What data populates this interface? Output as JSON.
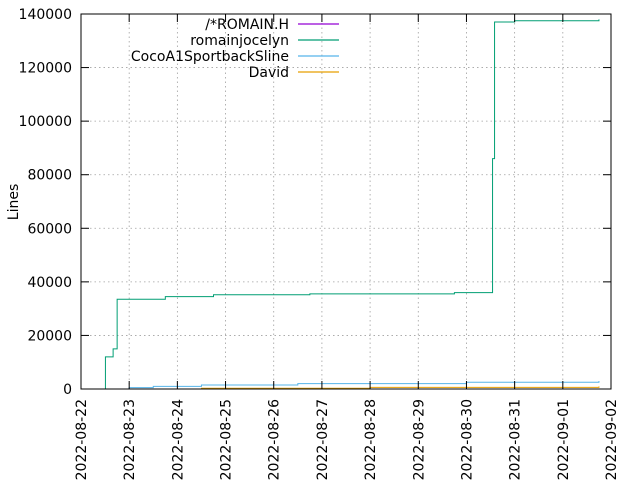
{
  "chart_data": {
    "type": "line",
    "title": "",
    "xlabel": "",
    "ylabel": "Lines",
    "x_axis": {
      "type": "date",
      "range": [
        "2022-08-22",
        "2022-09-02"
      ],
      "ticks": [
        "2022-08-22",
        "2022-08-23",
        "2022-08-24",
        "2022-08-25",
        "2022-08-26",
        "2022-08-27",
        "2022-08-28",
        "2022-08-29",
        "2022-08-30",
        "2022-08-31",
        "2022-09-01",
        "2022-09-02"
      ]
    },
    "y_axis": {
      "range": [
        0,
        140000
      ],
      "ticks": [
        "0",
        "20000",
        "40000",
        "60000",
        "80000",
        "100000",
        "120000",
        "140000"
      ]
    },
    "grid": true,
    "grid_style": "dotted",
    "legend_position": "top-left",
    "series": [
      {
        "name": "/*ROMAIN.H",
        "color": "#9400d3",
        "step": true,
        "points": [
          [
            "2022-08-22 12:00",
            0
          ],
          [
            "2022-09-01 18:00",
            0
          ]
        ]
      },
      {
        "name": "romainjocelyn",
        "color": "#009e73",
        "step": true,
        "points": [
          [
            "2022-08-22 12:00",
            0
          ],
          [
            "2022-08-22 12:10",
            12000
          ],
          [
            "2022-08-22 16:00",
            15000
          ],
          [
            "2022-08-22 18:00",
            33500
          ],
          [
            "2022-08-23 18:00",
            34500
          ],
          [
            "2022-08-24 18:00",
            35200
          ],
          [
            "2022-08-26 18:00",
            35500
          ],
          [
            "2022-08-29 18:00",
            36000
          ],
          [
            "2022-08-30 13:00",
            86000
          ],
          [
            "2022-08-30 14:00",
            137000
          ],
          [
            "2022-08-31 00:00",
            137500
          ],
          [
            "2022-09-01 18:00",
            138000
          ]
        ]
      },
      {
        "name": "CocoA1SportbackSline",
        "color": "#56b4e9",
        "step": true,
        "points": [
          [
            "2022-08-22 12:00",
            0
          ],
          [
            "2022-08-23 00:00",
            500
          ],
          [
            "2022-08-23 12:00",
            1000
          ],
          [
            "2022-08-24 12:00",
            1500
          ],
          [
            "2022-08-26 12:00",
            2000
          ],
          [
            "2022-08-30 00:00",
            2500
          ],
          [
            "2022-09-01 18:00",
            3000
          ]
        ]
      },
      {
        "name": "David",
        "color": "#e69f00",
        "step": true,
        "points": [
          [
            "2022-08-22 12:00",
            0
          ],
          [
            "2022-08-24 12:00",
            300
          ],
          [
            "2022-08-28 00:00",
            600
          ],
          [
            "2022-09-01 18:00",
            1000
          ]
        ]
      }
    ]
  }
}
